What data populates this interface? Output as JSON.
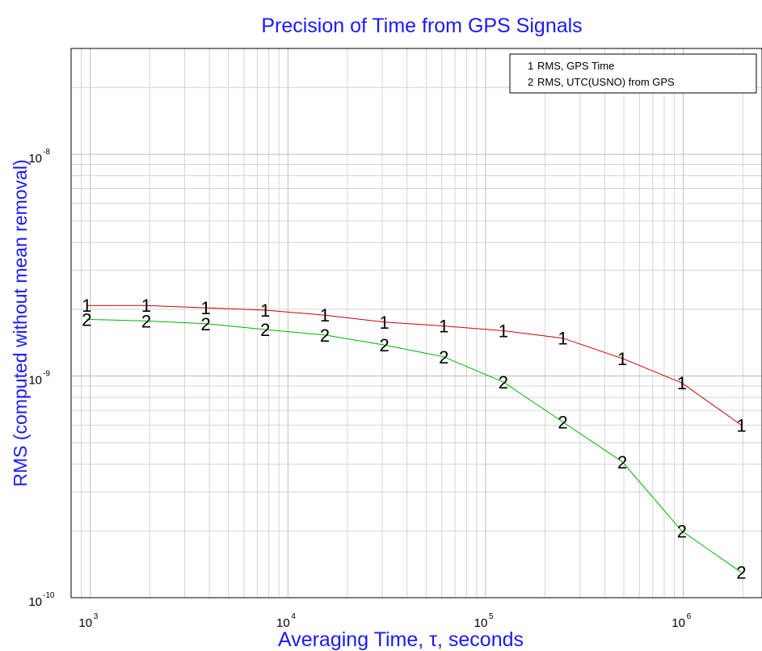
{
  "chart_data": {
    "type": "line",
    "title": "Precision of Time from GPS Signals",
    "xlabel": "Averaging Time, τ, seconds",
    "ylabel": "RMS (computed without mean removal)",
    "xscale": "log",
    "yscale": "log",
    "xlim": [
      800,
      2500000
    ],
    "ylim": [
      1e-10,
      3e-08
    ],
    "grid": true,
    "legend_position": "top-right",
    "x_ticks": [
      {
        "value": 1000,
        "base": "10",
        "exp": "3"
      },
      {
        "value": 10000,
        "base": "10",
        "exp": "4"
      },
      {
        "value": 100000,
        "base": "10",
        "exp": "5"
      },
      {
        "value": 1000000,
        "base": "10",
        "exp": "6"
      }
    ],
    "y_ticks": [
      {
        "value": 1e-10,
        "base": "10",
        "exp": "-10"
      },
      {
        "value": 1e-09,
        "base": "10",
        "exp": "-9"
      },
      {
        "value": 1e-08,
        "base": "10",
        "exp": "-8"
      }
    ],
    "series": [
      {
        "name": "RMS, GPS Time",
        "marker": "1",
        "color": "#cc0000",
        "x": [
          960,
          1920,
          3840,
          7680,
          15360,
          30720,
          61440,
          122880,
          245760,
          491520,
          983040,
          1966080
        ],
        "y": [
          2.08e-09,
          2.08e-09,
          2.03e-09,
          1.98e-09,
          1.88e-09,
          1.75e-09,
          1.68e-09,
          1.6e-09,
          1.48e-09,
          1.2e-09,
          9.3e-10,
          6e-10
        ]
      },
      {
        "name": "RMS, UTC(USNO) from GPS",
        "marker": "2",
        "color": "#00b000",
        "x": [
          960,
          1920,
          3840,
          7680,
          15360,
          30720,
          61440,
          122880,
          245760,
          491520,
          983040,
          1966080
        ],
        "y": [
          1.8e-09,
          1.77e-09,
          1.72e-09,
          1.62e-09,
          1.53e-09,
          1.38e-09,
          1.22e-09,
          9.4e-10,
          6.2e-10,
          4.1e-10,
          2e-10,
          1.3e-10
        ]
      }
    ]
  },
  "legend": {
    "entries": [
      {
        "marker": "1",
        "label": "RMS, GPS Time"
      },
      {
        "marker": "2",
        "label": "RMS, UTC(USNO) from GPS"
      }
    ]
  }
}
